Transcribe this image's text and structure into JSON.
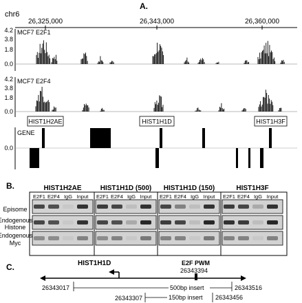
{
  "panel_a": {
    "letter": "A.",
    "chromosome": "chr6",
    "coords": [
      "26,325,000",
      "26,343,000",
      "26,360,000"
    ],
    "tracks": [
      {
        "name": "MCF7 E2F1",
        "ticks": [
          "4.2",
          "3.8",
          "1.8",
          "0.0"
        ]
      },
      {
        "name": "MCF7 E2F4",
        "ticks": [
          "4.2",
          "3.8",
          "1.8",
          "0.0"
        ]
      }
    ],
    "gene_track_label": "GENE",
    "gene_tick": "0.0",
    "genes": [
      "HIST1H2AE",
      "HIST1H1D",
      "HIST1H3F"
    ]
  },
  "panel_b": {
    "letter": "B.",
    "groups": [
      {
        "title": "HIST1H2AE"
      },
      {
        "title": "HIST1H1D (500)"
      },
      {
        "title": "HIST1H1D (150)"
      },
      {
        "title": "HIST1H3F"
      }
    ],
    "lanes": [
      "E2F1",
      "E2F4",
      "IgG",
      "Input"
    ],
    "rows": [
      {
        "line1": "Episome",
        "line2": ""
      },
      {
        "line1": "Endogenous",
        "line2": "Histone"
      },
      {
        "line1": "Endogenous",
        "line2": "Myc"
      }
    ],
    "intensity": [
      [
        [
          0.8,
          0.75,
          0.15,
          0.9
        ],
        [
          0.8,
          0.75,
          0.15,
          0.9
        ],
        [
          0.45,
          0.45,
          0.15,
          0.5
        ]
      ],
      [
        [
          0.85,
          0.8,
          0.2,
          0.9
        ],
        [
          0.8,
          0.75,
          0.3,
          0.95
        ],
        [
          0.45,
          0.5,
          0.15,
          0.55
        ]
      ],
      [
        [
          0.8,
          0.5,
          0.2,
          0.9
        ],
        [
          0.85,
          0.8,
          0.2,
          0.95
        ],
        [
          0.5,
          0.5,
          0.15,
          0.55
        ]
      ],
      [
        [
          0.85,
          0.8,
          0.3,
          0.9
        ],
        [
          0.9,
          0.85,
          0.2,
          0.95
        ],
        [
          0.5,
          0.5,
          0.15,
          0.5
        ]
      ]
    ]
  },
  "panel_c": {
    "letter": "C.",
    "gene": "HIST1H1D",
    "pwm_label": "E2F PWM",
    "pwm_coord": "26343394",
    "left_coord": "26343017",
    "right_coord": "26343516",
    "insert_500": "500bp insert",
    "left_coord_150": "26343307",
    "insert_150": "150bp insert",
    "right_coord_150": "26343456"
  }
}
